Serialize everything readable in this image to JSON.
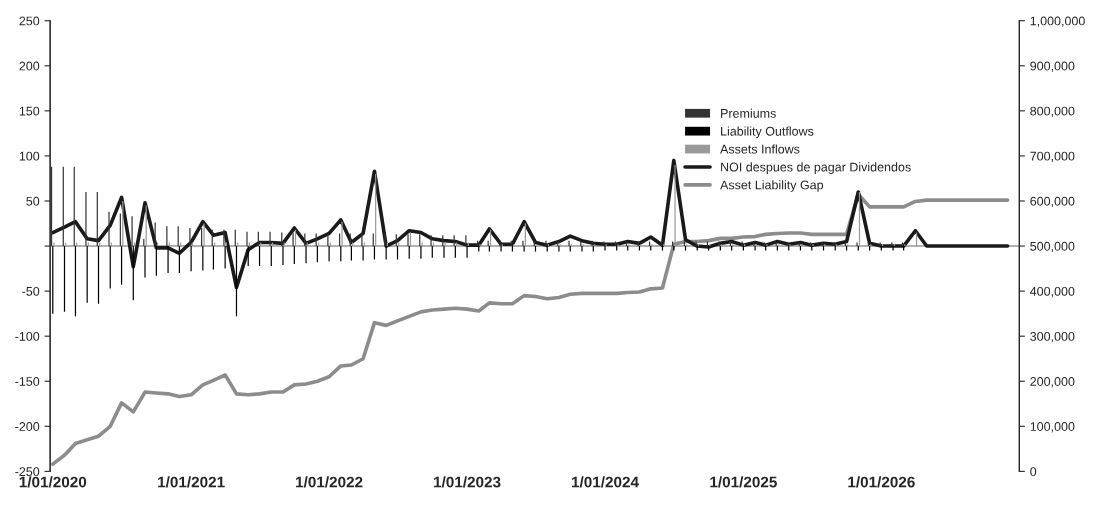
{
  "chart_data": {
    "type": "bar",
    "x": [
      "2020-01",
      "2020-02",
      "2020-03",
      "2020-04",
      "2020-05",
      "2020-06",
      "2020-07",
      "2020-08",
      "2020-09",
      "2020-10",
      "2020-11",
      "2020-12",
      "2021-01",
      "2021-02",
      "2021-03",
      "2021-04",
      "2021-05",
      "2021-06",
      "2021-07",
      "2021-08",
      "2021-09",
      "2021-10",
      "2021-11",
      "2021-12",
      "2022-01",
      "2022-02",
      "2022-03",
      "2022-04",
      "2022-05",
      "2022-06",
      "2022-07",
      "2022-08",
      "2022-09",
      "2022-10",
      "2022-11",
      "2022-12",
      "2023-01",
      "2023-02",
      "2023-03",
      "2023-04",
      "2023-05",
      "2023-06",
      "2023-07",
      "2023-08",
      "2023-09",
      "2023-10",
      "2023-11",
      "2023-12",
      "2024-01",
      "2024-02",
      "2024-03",
      "2024-04",
      "2024-05",
      "2024-06",
      "2024-07",
      "2024-08",
      "2024-09",
      "2024-10",
      "2024-11",
      "2024-12",
      "2025-01",
      "2025-02",
      "2025-03",
      "2025-04",
      "2025-05",
      "2025-06",
      "2025-07",
      "2025-08",
      "2025-09",
      "2025-10",
      "2025-11",
      "2025-12",
      "2026-01",
      "2026-02",
      "2026-03",
      "2026-04",
      "2026-05",
      "2026-06",
      "2026-07",
      "2026-08",
      "2026-09",
      "2026-10",
      "2026-11",
      "2026-12"
    ],
    "series": [
      {
        "name": "Premiums",
        "color": "#333333",
        "values": [
          88,
          88,
          88,
          60,
          60,
          38,
          36,
          33,
          8,
          26,
          22,
          22,
          20,
          20,
          18,
          18,
          18,
          16,
          16,
          16,
          15,
          15,
          14,
          14,
          14,
          14,
          14,
          14,
          14,
          14,
          13,
          13,
          13,
          12,
          12,
          12,
          12,
          6,
          6,
          6,
          6,
          6,
          6,
          6,
          6,
          6,
          6,
          6,
          5,
          5,
          5,
          5,
          5,
          5,
          5,
          5,
          5,
          5,
          5,
          5,
          5,
          4,
          4,
          4,
          4,
          4,
          4,
          4,
          4,
          4,
          4,
          4,
          4,
          4,
          4,
          null,
          null,
          null,
          null,
          null,
          null,
          null,
          null,
          null
        ]
      },
      {
        "name": "Liability Outflows",
        "color": "#000000",
        "values": [
          -75,
          -73,
          -78,
          -63,
          -64,
          -47,
          -43,
          -60,
          -35,
          -33,
          -30,
          -30,
          -28,
          -27,
          -26,
          -25,
          -78,
          -22,
          -22,
          -22,
          -21,
          -20,
          -19,
          -18,
          -17,
          -17,
          -16,
          -16,
          -15,
          -15,
          -15,
          -14,
          -14,
          -13,
          -13,
          -13,
          -13,
          -6,
          -6,
          -6,
          -6,
          -6,
          -6,
          -6,
          -6,
          -6,
          -6,
          -6,
          -5,
          -5,
          -5,
          -5,
          -5,
          -5,
          -5,
          -5,
          -5,
          -5,
          -5,
          -5,
          -5,
          -5,
          -5,
          -5,
          -5,
          -5,
          -5,
          -5,
          -5,
          -5,
          -5,
          -5,
          -5,
          -5,
          -5,
          null,
          null,
          null,
          null,
          null,
          null,
          null,
          null,
          null
        ]
      },
      {
        "name": "Assets Inflows",
        "color": "#999999",
        "values": [
          4,
          4,
          4,
          4,
          4,
          4,
          50,
          4,
          45,
          4,
          4,
          4,
          4,
          25,
          4,
          4,
          4,
          4,
          4,
          4,
          4,
          18,
          4,
          4,
          4,
          27,
          4,
          4,
          80,
          4,
          4,
          15,
          4,
          4,
          4,
          4,
          4,
          2,
          18,
          2,
          2,
          25,
          2,
          2,
          2,
          2,
          2,
          2,
          2,
          2,
          2,
          2,
          2,
          2,
          90,
          2,
          2,
          2,
          2,
          2,
          2,
          2,
          2,
          2,
          2,
          2,
          2,
          2,
          2,
          2,
          60,
          2,
          2,
          2,
          2,
          15,
          null,
          null,
          null,
          null,
          null,
          null,
          null,
          null
        ]
      },
      {
        "name": "NOI despues de pagar Dividendos",
        "type": "line",
        "color": "#1a1a1a",
        "values": [
          15,
          21,
          27,
          8,
          6,
          23,
          54,
          -23,
          48,
          -2,
          -2,
          -8,
          4,
          27,
          12,
          15,
          -46,
          -4,
          4,
          4,
          3,
          20,
          3,
          8,
          14,
          29,
          4,
          14,
          83,
          0,
          6,
          17,
          15,
          8,
          6,
          5,
          1,
          1,
          19,
          2,
          2,
          27,
          4,
          1,
          5,
          11,
          6,
          3,
          2,
          2,
          5,
          3,
          10,
          1,
          95,
          7,
          0,
          -1,
          3,
          5,
          1,
          4,
          1,
          5,
          2,
          4,
          1,
          3,
          2,
          5,
          60,
          3,
          0,
          0,
          0,
          17,
          0,
          0,
          0,
          0,
          0,
          0,
          0,
          0
        ]
      },
      {
        "name": "Asset Liability Gap",
        "type": "line",
        "axis": "y2",
        "color": "#8c8c8c",
        "values": [
          16000,
          36000,
          62000,
          70000,
          78000,
          100000,
          152000,
          132000,
          176000,
          174000,
          172000,
          166000,
          170000,
          192000,
          202000,
          214000,
          172000,
          170000,
          172000,
          176000,
          176000,
          192000,
          194000,
          200000,
          210000,
          234000,
          236000,
          250000,
          330000,
          324000,
          334000,
          344000,
          354000,
          358000,
          360000,
          362000,
          360000,
          356000,
          374000,
          372000,
          372000,
          390000,
          388000,
          383000,
          386000,
          393000,
          395000,
          395000,
          395000,
          395000,
          397000,
          398000,
          405000,
          407000,
          504000,
          510000,
          510000,
          512000,
          517000,
          517000,
          520000,
          521000,
          526000,
          528000,
          529000,
          529000,
          526000,
          526000,
          526000,
          526000,
          615000,
          587000,
          587000,
          587000,
          587000,
          599000,
          602000,
          602000,
          602000,
          602000,
          602000,
          602000,
          602000,
          602000
        ]
      }
    ],
    "xlim": [
      "2019-12-25",
      "2027-01-01"
    ],
    "xticks": [
      {
        "value": "2020-01-01",
        "label": "1/01/2020"
      },
      {
        "value": "2021-01-01",
        "label": "1/01/2021"
      },
      {
        "value": "2022-01-01",
        "label": "1/01/2022"
      },
      {
        "value": "2023-01-01",
        "label": "1/01/2023"
      },
      {
        "value": "2024-01-01",
        "label": "1/01/2024"
      },
      {
        "value": "2025-01-01",
        "label": "1/01/2025"
      },
      {
        "value": "2026-01-01",
        "label": "1/01/2026"
      }
    ],
    "ylim": [
      -250,
      250
    ],
    "yticks": [
      -250,
      -200,
      -150,
      -100,
      -50,
      {
        "value": 0,
        "label": null
      },
      50,
      100,
      150,
      200,
      250
    ],
    "y2lim": [
      0,
      1000000
    ],
    "y2ticks": [
      0,
      {
        "value": 100000,
        "label": "100,000"
      },
      {
        "value": 200000,
        "label": "200,000"
      },
      {
        "value": 300000,
        "label": "300,000"
      },
      {
        "value": 400000,
        "label": "400,000"
      },
      {
        "value": 500000,
        "label": "500,000"
      },
      {
        "value": 600000,
        "label": "600,000"
      },
      {
        "value": 700000,
        "label": "700,000"
      },
      {
        "value": 800000,
        "label": "800,000"
      },
      {
        "value": 900000,
        "label": "900,000"
      },
      {
        "value": 1000000,
        "label": "1,000,000"
      }
    ],
    "ref_lines": [
      {
        "axis": "y",
        "value": 0,
        "color": "#666666"
      }
    ],
    "grid": false,
    "legend": "top right"
  }
}
